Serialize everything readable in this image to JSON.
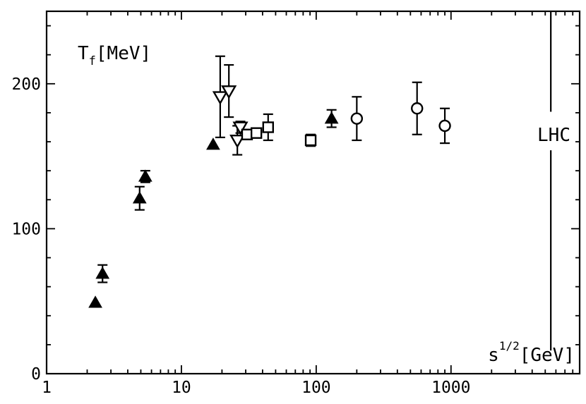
{
  "chart_data": {
    "type": "scatter",
    "xscale": "log",
    "xlim": [
      1,
      9000
    ],
    "ylim": [
      0,
      250
    ],
    "xticks": [
      1,
      10,
      100,
      1000
    ],
    "yticks": [
      0,
      100,
      200
    ],
    "xtick_labels": [
      "1",
      "10",
      "100",
      "1000"
    ],
    "ytick_labels": [
      "0",
      "100",
      "200"
    ],
    "ylabel": {
      "main": "T",
      "sub": "f",
      "unit": "[MeV]"
    },
    "xlabel": {
      "main": "s",
      "sup": "1/2",
      "unit": "[GeV]"
    },
    "grid": false,
    "annotations": [
      {
        "text": "LHC",
        "x": 5500,
        "type": "vertical-line"
      }
    ],
    "series": [
      {
        "marker": "filled-triangle",
        "points": [
          {
            "x": 2.3,
            "y": 49
          },
          {
            "x": 2.6,
            "y": 69,
            "err": 6
          },
          {
            "x": 4.9,
            "y": 121,
            "err": 8
          },
          {
            "x": 5.4,
            "y": 136,
            "err": 4
          },
          {
            "x": 17.2,
            "y": 158
          },
          {
            "x": 130,
            "y": 176,
            "err": 6
          }
        ]
      },
      {
        "marker": "open-down-triangle",
        "points": [
          {
            "x": 19.4,
            "y": 191,
            "err": 28
          },
          {
            "x": 22.5,
            "y": 195,
            "err": 18
          },
          {
            "x": 26,
            "y": 161,
            "err": 10
          },
          {
            "x": 27.4,
            "y": 170,
            "err": 4
          }
        ]
      },
      {
        "marker": "open-square",
        "points": [
          {
            "x": 30.7,
            "y": 165
          },
          {
            "x": 36,
            "y": 166
          },
          {
            "x": 44,
            "y": 170,
            "err": 9
          },
          {
            "x": 91,
            "y": 161,
            "err": 4
          }
        ]
      },
      {
        "marker": "open-circle",
        "points": [
          {
            "x": 200,
            "y": 176,
            "err": 15
          },
          {
            "x": 560,
            "y": 183,
            "err": 18
          },
          {
            "x": 900,
            "y": 171,
            "err": 12
          }
        ]
      }
    ]
  }
}
